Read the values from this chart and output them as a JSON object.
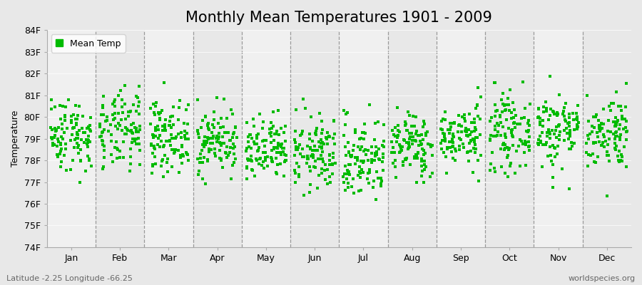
{
  "title": "Monthly Mean Temperatures 1901 - 2009",
  "ylabel": "Temperature",
  "months": [
    "Jan",
    "Feb",
    "Mar",
    "Apr",
    "May",
    "Jun",
    "Jul",
    "Aug",
    "Sep",
    "Oct",
    "Nov",
    "Dec"
  ],
  "ylim": [
    74,
    84
  ],
  "yticks": [
    74,
    75,
    76,
    77,
    78,
    79,
    80,
    81,
    82,
    83,
    84
  ],
  "ytick_labels": [
    "74F",
    "75F",
    "76F",
    "77F",
    "78F",
    "79F",
    "80F",
    "81F",
    "82F",
    "83F",
    "84F"
  ],
  "dot_color": "#00BB00",
  "background_color": "#E8E8E8",
  "band_color_light": "#F0F0F0",
  "title_fontsize": 15,
  "label_fontsize": 9,
  "tick_fontsize": 9,
  "legend_label": "Mean Temp",
  "bottom_left_text": "Latitude -2.25 Longitude -66.25",
  "bottom_right_text": "worldspecies.org",
  "n_years": 109,
  "seed": 42,
  "monthly_means": [
    79.2,
    79.3,
    79.1,
    78.9,
    78.4,
    78.3,
    78.1,
    78.7,
    79.1,
    79.3,
    79.4,
    79.3
  ],
  "monthly_stds": [
    0.85,
    0.9,
    0.8,
    0.75,
    0.75,
    0.85,
    0.95,
    0.75,
    0.7,
    0.85,
    0.9,
    0.85
  ]
}
